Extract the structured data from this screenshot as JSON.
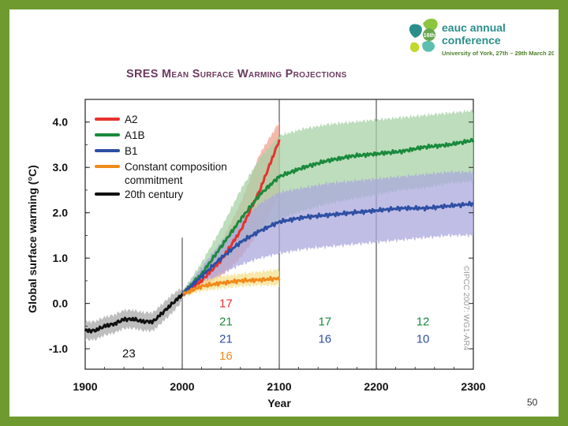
{
  "slide": {
    "page_number": "50",
    "logo": {
      "badge": "16th",
      "line1": "eauc annual",
      "line2": "conference",
      "line3": "University of York, 27th – 29th March 2012",
      "colors": [
        "#2a8f8a",
        "#8cc63f",
        "#5bbfb0",
        "#c2d82e"
      ]
    }
  },
  "chart_data": {
    "type": "line",
    "title": "SRES Mean Surface Warming Projections",
    "xlabel": "Year",
    "ylabel": "Global surface warming (°C)",
    "xlim": [
      1900,
      2300
    ],
    "ylim": [
      -1.45,
      4.5
    ],
    "xticks": [
      1900,
      2000,
      2100,
      2200,
      2300
    ],
    "xtick_labels": [
      "1900",
      "2000",
      "2100",
      "2200",
      "2300"
    ],
    "yticks": [
      -1.0,
      0.0,
      1.0,
      2.0,
      3.0,
      4.0
    ],
    "ytick_labels": [
      "-1.0",
      "0.0",
      "1.0",
      "2.0",
      "3.0",
      "4.0"
    ],
    "vlines": [
      2000,
      2100,
      2200
    ],
    "legend_position": "top-left",
    "watermark": "©IPCC 2007: WG1-AR4",
    "series": [
      {
        "name": "A2",
        "color": "#e8312f",
        "band_color": "#f2a291",
        "x": [
          2000,
          2020,
          2040,
          2060,
          2080,
          2100
        ],
        "y": [
          0.2,
          0.5,
          0.95,
          1.6,
          2.5,
          3.6
        ],
        "lower": [
          0.15,
          0.35,
          0.6,
          1.0,
          1.6,
          2.4
        ],
        "upper": [
          0.25,
          0.7,
          1.35,
          2.2,
          3.3,
          4.0
        ]
      },
      {
        "name": "A1B",
        "color": "#1a8a3c",
        "band_color": "#a7d2a5",
        "x": [
          2000,
          2020,
          2040,
          2060,
          2080,
          2100,
          2125,
          2150,
          2175,
          2200,
          2225,
          2250,
          2275,
          2300
        ],
        "y": [
          0.2,
          0.65,
          1.25,
          1.85,
          2.4,
          2.8,
          3.0,
          3.15,
          3.25,
          3.3,
          3.35,
          3.45,
          3.5,
          3.6
        ],
        "lower": [
          0.15,
          0.45,
          0.85,
          1.25,
          1.6,
          1.85,
          2.05,
          2.2,
          2.3,
          2.4,
          2.5,
          2.55,
          2.65,
          2.7
        ],
        "upper": [
          0.25,
          0.9,
          1.65,
          2.5,
          3.2,
          3.7,
          3.85,
          3.95,
          4.0,
          4.05,
          4.1,
          4.15,
          4.2,
          4.25
        ]
      },
      {
        "name": "B1",
        "color": "#2e4fa3",
        "band_color": "#aba8dc",
        "x": [
          2000,
          2020,
          2040,
          2060,
          2080,
          2100,
          2125,
          2150,
          2175,
          2200,
          2225,
          2250,
          2275,
          2300
        ],
        "y": [
          0.2,
          0.6,
          1.0,
          1.35,
          1.6,
          1.8,
          1.9,
          1.95,
          2.0,
          2.05,
          2.1,
          2.1,
          2.15,
          2.2
        ],
        "lower": [
          0.15,
          0.4,
          0.65,
          0.85,
          1.0,
          1.1,
          1.2,
          1.25,
          1.3,
          1.35,
          1.4,
          1.45,
          1.5,
          1.5
        ],
        "upper": [
          0.25,
          0.8,
          1.35,
          1.8,
          2.2,
          2.45,
          2.55,
          2.65,
          2.7,
          2.75,
          2.8,
          2.85,
          2.9,
          2.9
        ]
      },
      {
        "name": "Constant composition commitment",
        "color": "#f08a1c",
        "band_color": "#f6e08c",
        "x": [
          2000,
          2020,
          2040,
          2060,
          2080,
          2100
        ],
        "y": [
          0.2,
          0.38,
          0.45,
          0.5,
          0.52,
          0.55
        ],
        "lower": [
          0.15,
          0.28,
          0.33,
          0.38,
          0.4,
          0.4
        ],
        "upper": [
          0.25,
          0.5,
          0.6,
          0.65,
          0.7,
          0.75
        ]
      },
      {
        "name": "20th century",
        "color": "#111111",
        "band_color": "#a8a8a8",
        "x": [
          1900,
          1910,
          1920,
          1930,
          1940,
          1950,
          1960,
          1970,
          1980,
          1990,
          2000
        ],
        "y": [
          -0.6,
          -0.6,
          -0.5,
          -0.45,
          -0.35,
          -0.35,
          -0.4,
          -0.4,
          -0.2,
          0.0,
          0.2
        ],
        "lower": [
          -0.8,
          -0.8,
          -0.7,
          -0.65,
          -0.55,
          -0.55,
          -0.6,
          -0.6,
          -0.4,
          -0.2,
          0.05
        ],
        "upper": [
          -0.4,
          -0.4,
          -0.3,
          -0.25,
          -0.15,
          -0.15,
          -0.2,
          -0.2,
          0.0,
          0.2,
          0.35
        ]
      }
    ],
    "annotations": [
      {
        "text": "23",
        "x": 1945,
        "y": -1.1,
        "color": "#111111"
      },
      {
        "text": "17",
        "x": 2045,
        "y": 0.0,
        "color": "#e8312f"
      },
      {
        "text": "21",
        "x": 2045,
        "y": -0.4,
        "color": "#1a8a3c"
      },
      {
        "text": "21",
        "x": 2045,
        "y": -0.78,
        "color": "#2e4fa3"
      },
      {
        "text": "16",
        "x": 2045,
        "y": -1.15,
        "color": "#f08a1c"
      },
      {
        "text": "17",
        "x": 2147,
        "y": -0.4,
        "color": "#1a8a3c"
      },
      {
        "text": "16",
        "x": 2147,
        "y": -0.78,
        "color": "#2e4fa3"
      },
      {
        "text": "12",
        "x": 2248,
        "y": -0.4,
        "color": "#1a8a3c"
      },
      {
        "text": "10",
        "x": 2248,
        "y": -0.78,
        "color": "#2e4fa3"
      }
    ]
  }
}
